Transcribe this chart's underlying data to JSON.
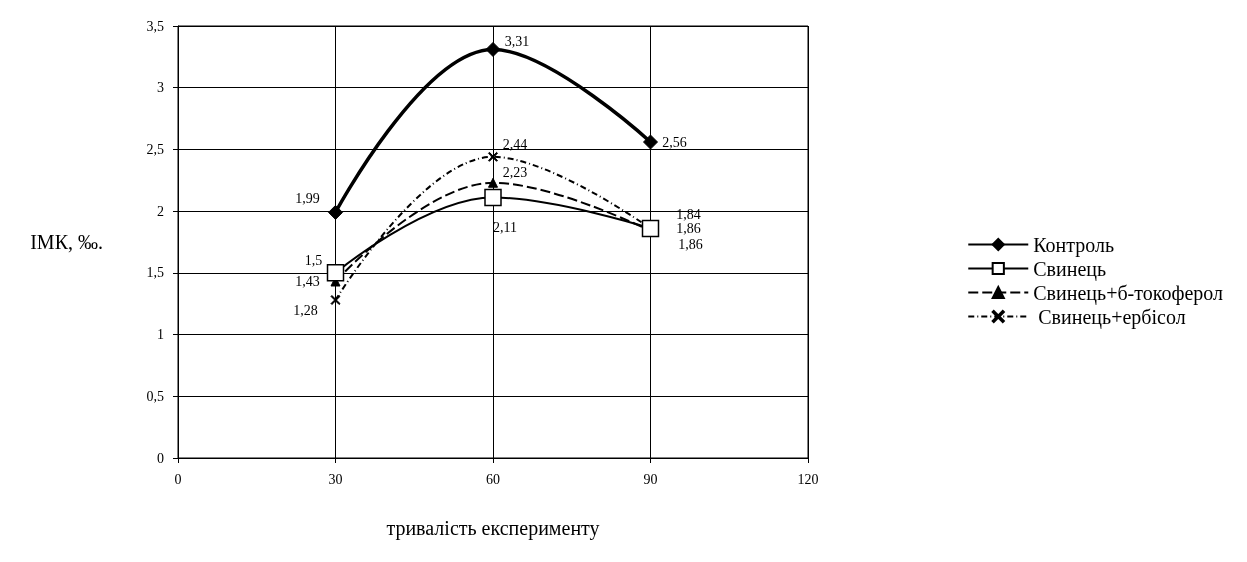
{
  "chart_data": {
    "type": "line",
    "xlabel": "тривалість експерименту",
    "ylabel": "ІМК, ‰.",
    "x": [
      30,
      60,
      90
    ],
    "series": [
      {
        "name": "Контроль",
        "color": "#000000",
        "values": [
          1.99,
          3.31,
          2.56
        ],
        "value_labels": [
          "1,99",
          "3,31",
          "2,56"
        ],
        "marker": "diamond",
        "line_style": "solid"
      },
      {
        "name": "Свинець",
        "color": "#000000",
        "values": [
          1.5,
          2.11,
          1.86
        ],
        "value_labels": [
          "1,5",
          "2,11",
          "1,86"
        ],
        "marker": "square",
        "line_style": "solid"
      },
      {
        "name": "Свинець+б-токоферол",
        "color": "#000000",
        "values": [
          1.43,
          2.23,
          1.84
        ],
        "value_labels": [
          "1,43",
          "2,23",
          "1,84"
        ],
        "marker": "triangle",
        "line_style": "dashed"
      },
      {
        "name": " Свинець+ербісол",
        "color": "#000000",
        "values": [
          1.28,
          2.44,
          1.86
        ],
        "value_labels": [
          "1,28",
          "2,44",
          "1,86"
        ],
        "marker": "cross",
        "line_style": "dotted"
      }
    ],
    "xlim": [
      0,
      120
    ],
    "xticks": [
      0,
      30,
      60,
      90,
      120
    ],
    "ylim": [
      0,
      3.5
    ],
    "yticks": [
      0,
      {
        "value": 0.5,
        "label": "0,5"
      },
      1,
      {
        "value": 1.5,
        "label": "1,5"
      },
      2,
      {
        "value": 2.5,
        "label": "2,5"
      },
      3,
      {
        "value": 3.5,
        "label": "3,5"
      }
    ],
    "grid": true,
    "legend": "right"
  }
}
